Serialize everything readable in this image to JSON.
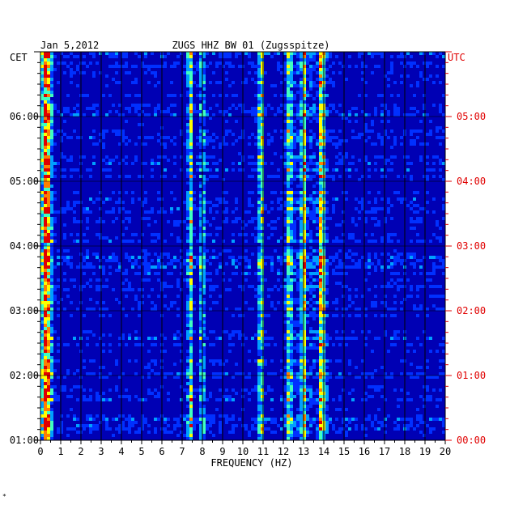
{
  "chart_data": {
    "type": "heatmap",
    "title": "ZUGS HHZ BW 01 (Zugsspitze)",
    "date": "Jan 5,2012",
    "xlabel": "FREQUENCY (HZ)",
    "left_axis_label": "CET",
    "right_axis_label": "UTC",
    "xlim": [
      0,
      20
    ],
    "x_ticks": [
      "0",
      "1",
      "2",
      "3",
      "4",
      "5",
      "6",
      "7",
      "8",
      "9",
      "10",
      "11",
      "12",
      "13",
      "14",
      "15",
      "16",
      "17",
      "18",
      "19",
      "20"
    ],
    "left_ticks": [
      {
        "label": "01:00",
        "hours_from_bottom": 0
      },
      {
        "label": "02:00",
        "hours_from_bottom": 1
      },
      {
        "label": "03:00",
        "hours_from_bottom": 2
      },
      {
        "label": "04:00",
        "hours_from_bottom": 3
      },
      {
        "label": "05:00",
        "hours_from_bottom": 4
      },
      {
        "label": "06:00",
        "hours_from_bottom": 5
      }
    ],
    "right_ticks": [
      {
        "label": "00:00",
        "hours_from_bottom": 0
      },
      {
        "label": "01:00",
        "hours_from_bottom": 1
      },
      {
        "label": "02:00",
        "hours_from_bottom": 2
      },
      {
        "label": "03:00",
        "hours_from_bottom": 3
      },
      {
        "label": "04:00",
        "hours_from_bottom": 4
      },
      {
        "label": "05:00",
        "hours_from_bottom": 5
      }
    ],
    "time_span_hours": 6,
    "colormap": [
      "#00008f",
      "#0000cf",
      "#0030ff",
      "#00a0ff",
      "#40ffc0",
      "#ffff00",
      "#ff8000",
      "#e00000"
    ],
    "background_color": "#0000b4",
    "grid": true,
    "energy_bands": [
      {
        "freq_hz": 0.3,
        "intensity": 0.95
      },
      {
        "freq_hz": 7.4,
        "intensity": 0.55
      },
      {
        "freq_hz": 8.0,
        "intensity": 0.4
      },
      {
        "freq_hz": 10.9,
        "intensity": 0.6
      },
      {
        "freq_hz": 12.3,
        "intensity": 0.45
      },
      {
        "freq_hz": 13.0,
        "intensity": 0.55
      },
      {
        "freq_hz": 13.9,
        "intensity": 0.7
      }
    ],
    "tick_color_left": "#000000",
    "tick_color_right": "#e00000"
  },
  "footer_mark": "*"
}
